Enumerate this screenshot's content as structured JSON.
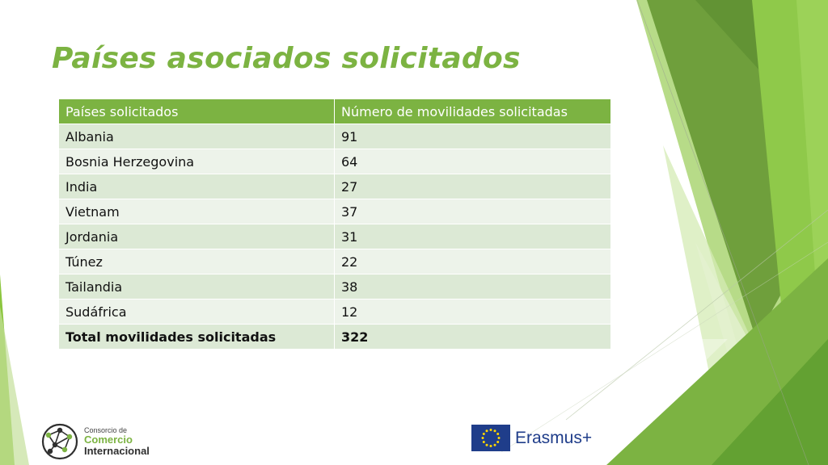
{
  "slide": {
    "title": "Países asociados solicitados",
    "table": {
      "headers": [
        "Países solicitados",
        "Número de movilidades solicitadas"
      ],
      "rows": [
        [
          "Albania",
          "91"
        ],
        [
          "Bosnia Herzegovina",
          "64"
        ],
        [
          "India",
          "27"
        ],
        [
          "Vietnam",
          "37"
        ],
        [
          "Jordania",
          "31"
        ],
        [
          "Túnez",
          "22"
        ],
        [
          "Tailandia",
          "38"
        ],
        [
          "Sudáfrica",
          "12"
        ]
      ],
      "total": [
        "Total movilidades solicitadas",
        "322"
      ]
    },
    "logos": {
      "cci": {
        "line1": "Consorcio de",
        "line2": "Comercio",
        "line3": "Internacional"
      },
      "erasmus": {
        "text": "Erasmus+"
      }
    }
  },
  "colors": {
    "accent": "#7cb342",
    "header_bg": "#7cb342",
    "row_odd": "#dce9d5",
    "row_even": "#edf3ea",
    "eu_blue": "#1f3d8a",
    "eu_star": "#ffd700"
  },
  "icons": [
    "network-globe-icon",
    "eu-flag-icon"
  ]
}
